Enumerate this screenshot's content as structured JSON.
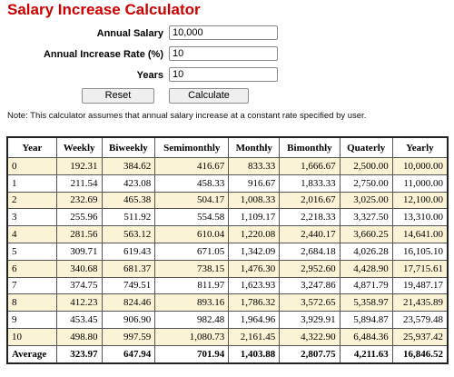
{
  "title": "Salary Increase Calculator",
  "form": {
    "annual_salary": {
      "label": "Annual Salary",
      "value": "10,000"
    },
    "increase_rate": {
      "label": "Annual Increase Rate (%)",
      "value": "10"
    },
    "years": {
      "label": "Years",
      "value": "10"
    }
  },
  "buttons": {
    "reset": "Reset",
    "calculate": "Calculate"
  },
  "note": "Note: This calculator assumes that annual salary increase at a constant rate specified by user.",
  "colors": {
    "title": "#cc0000",
    "odd_row": "#fbf3d5"
  },
  "table": {
    "headers": [
      "Year",
      "Weekly",
      "Biweekly",
      "Semimonthly",
      "Monthly",
      "Bimonthly",
      "Quaterly",
      "Yearly"
    ],
    "rows": [
      [
        "0",
        "192.31",
        "384.62",
        "416.67",
        "833.33",
        "1,666.67",
        "2,500.00",
        "10,000.00"
      ],
      [
        "1",
        "211.54",
        "423.08",
        "458.33",
        "916.67",
        "1,833.33",
        "2,750.00",
        "11,000.00"
      ],
      [
        "2",
        "232.69",
        "465.38",
        "504.17",
        "1,008.33",
        "2,016.67",
        "3,025.00",
        "12,100.00"
      ],
      [
        "3",
        "255.96",
        "511.92",
        "554.58",
        "1,109.17",
        "2,218.33",
        "3,327.50",
        "13,310.00"
      ],
      [
        "4",
        "281.56",
        "563.12",
        "610.04",
        "1,220.08",
        "2,440.17",
        "3,660.25",
        "14,641.00"
      ],
      [
        "5",
        "309.71",
        "619.43",
        "671.05",
        "1,342.09",
        "2,684.18",
        "4,026.28",
        "16,105.10"
      ],
      [
        "6",
        "340.68",
        "681.37",
        "738.15",
        "1,476.30",
        "2,952.60",
        "4,428.90",
        "17,715.61"
      ],
      [
        "7",
        "374.75",
        "749.51",
        "811.97",
        "1,623.93",
        "3,247.86",
        "4,871.79",
        "19,487.17"
      ],
      [
        "8",
        "412.23",
        "824.46",
        "893.16",
        "1,786.32",
        "3,572.65",
        "5,358.97",
        "21,435.89"
      ],
      [
        "9",
        "453.45",
        "906.90",
        "982.48",
        "1,964.96",
        "3,929.91",
        "5,894.87",
        "23,579.48"
      ],
      [
        "10",
        "498.80",
        "997.59",
        "1,080.73",
        "2,161.45",
        "4,322.90",
        "6,484.36",
        "25,937.42"
      ]
    ],
    "average": [
      "Average",
      "323.97",
      "647.94",
      "701.94",
      "1,403.88",
      "2,807.75",
      "4,211.63",
      "16,846.52"
    ]
  }
}
